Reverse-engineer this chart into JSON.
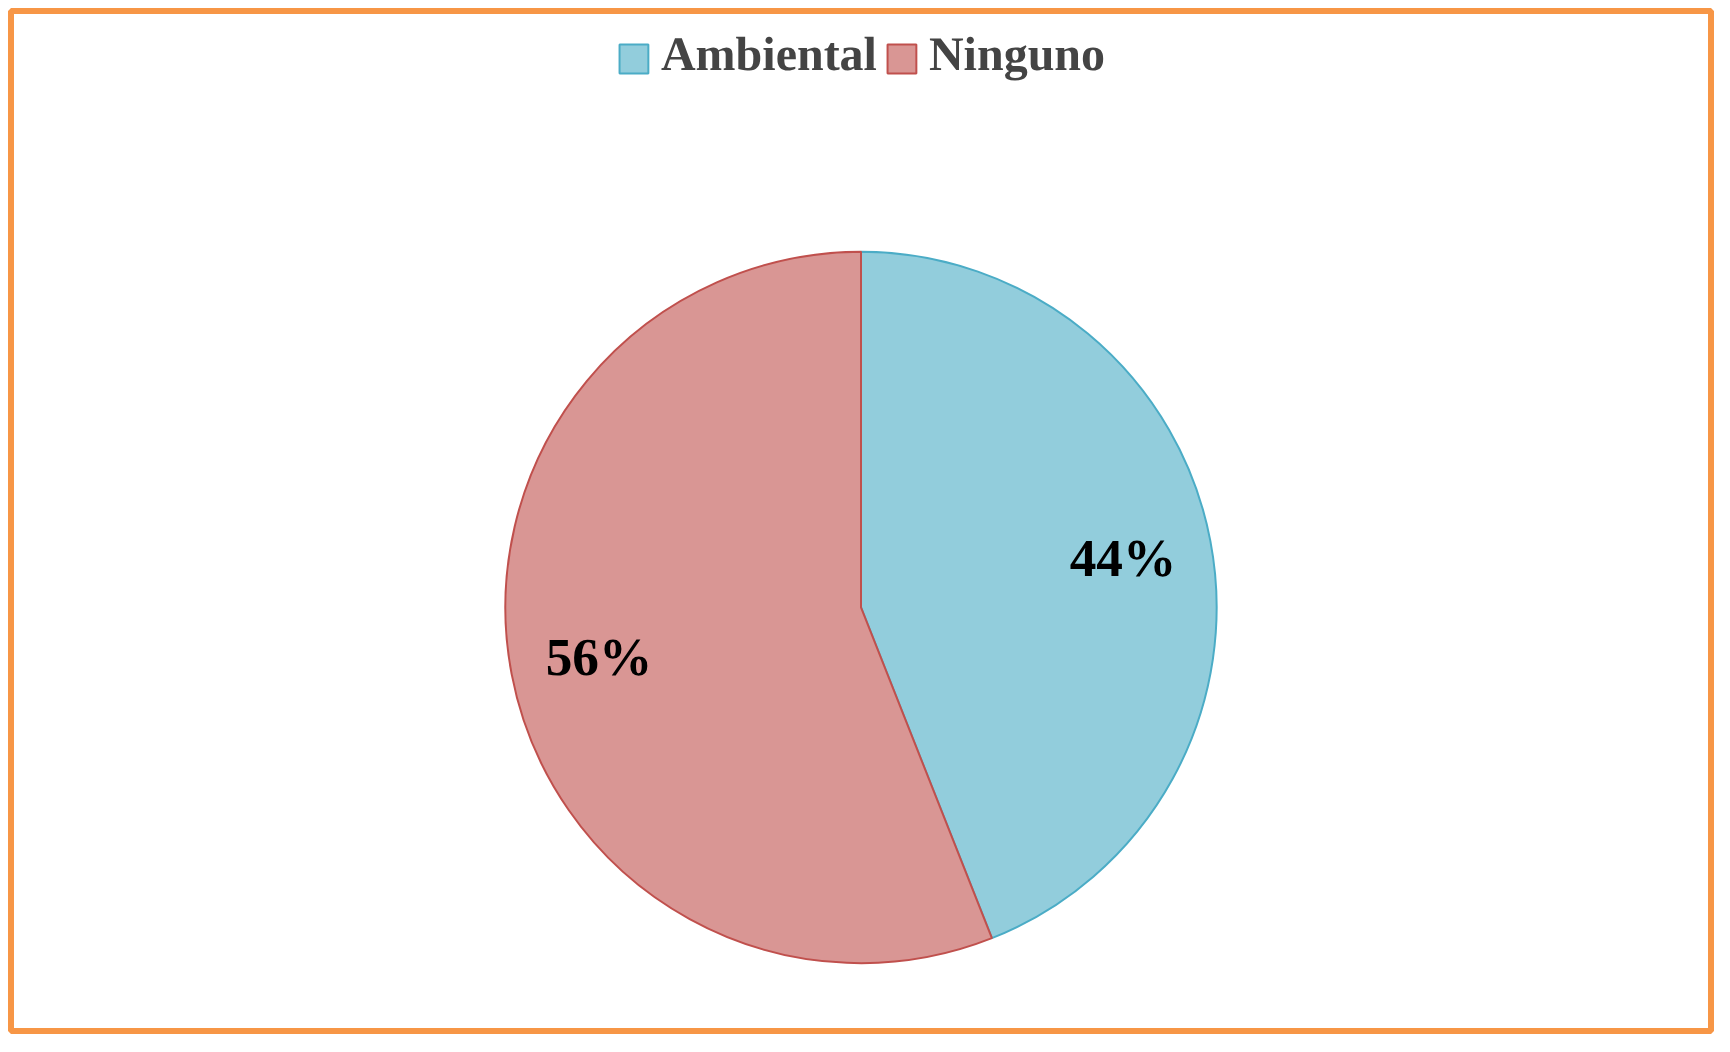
{
  "chart_data": {
    "type": "pie",
    "categories": [
      "Ambiental",
      "Ninguno"
    ],
    "values": [
      44,
      56
    ],
    "colors": [
      "#92cddc",
      "#d99694"
    ],
    "value_labels": [
      "44%",
      "56%"
    ],
    "legend": "top"
  }
}
